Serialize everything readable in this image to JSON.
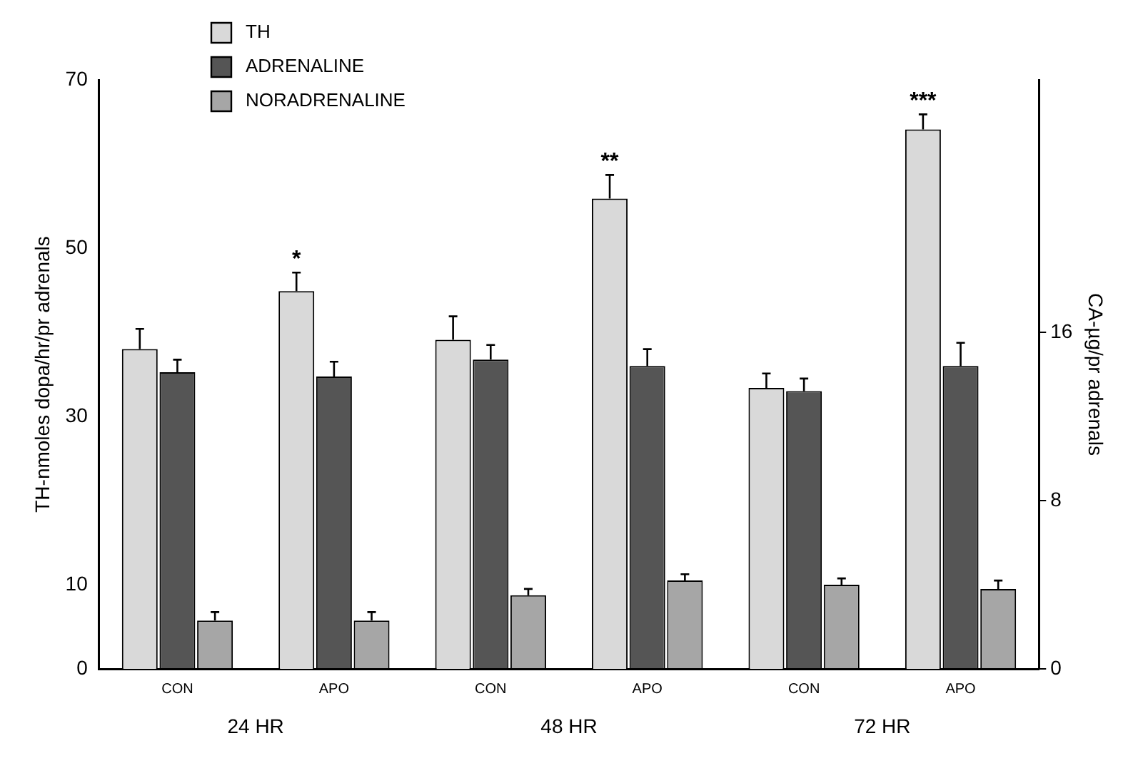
{
  "chart_data": {
    "type": "bar",
    "ylabel": "TH-nmoles dopa/hr/pr adrenals",
    "y2label": "CA-µg/pr adrenals",
    "categories": [
      "CON",
      "APO",
      "CON",
      "APO",
      "CON",
      "APO"
    ],
    "series": [
      {
        "name": "TH",
        "color": "#d9d9d9",
        "values": [
          38,
          44.9,
          39.1,
          55.9,
          33.4,
          64.1
        ],
        "errors": [
          [
            38,
            40.4
          ],
          [
            44.9,
            47.1
          ],
          [
            39.1,
            41.9
          ],
          [
            55.9,
            58.7
          ],
          [
            33.4,
            35.1
          ],
          [
            64.1,
            65.9
          ]
        ]
      },
      {
        "name": "ADRENALINE",
        "color": "#555555",
        "axis": "y2",
        "values": [
          14.1,
          13.9,
          14.7,
          14.4,
          13.2,
          14.4
        ],
        "errors": [
          [
            14.1,
            14.7
          ],
          [
            13.9,
            14.6
          ],
          [
            14.7,
            15.4
          ],
          [
            14.4,
            15.2
          ],
          [
            13.2,
            13.8
          ],
          [
            14.4,
            15.5
          ]
        ]
      },
      {
        "name": "NORADRENALINE",
        "color": "#a6a6a6",
        "axis": "y2",
        "values": [
          2.3,
          2.3,
          3.5,
          4.2,
          4.0,
          3.8
        ],
        "errors": [
          [
            2.3,
            2.7
          ],
          [
            2.3,
            2.7
          ],
          [
            3.5,
            3.8
          ],
          [
            4.2,
            4.5
          ],
          [
            4.0,
            4.3
          ],
          [
            3.8,
            4.2
          ]
        ]
      }
    ],
    "ylim": [
      0,
      70
    ],
    "yticks": [
      0,
      10,
      30,
      50,
      70
    ],
    "y2lim": [
      0,
      28
    ],
    "y2ticks": [
      0,
      8,
      16
    ],
    "grid": false,
    "legend": "top left",
    "annotations": [
      "24 HR",
      "48 HR",
      "72 HR",
      {
        "text": "*",
        "y": 47.1
      },
      {
        "text": "**",
        "y": 58.7
      },
      {
        "text": "***",
        "y": 65.9
      }
    ]
  }
}
